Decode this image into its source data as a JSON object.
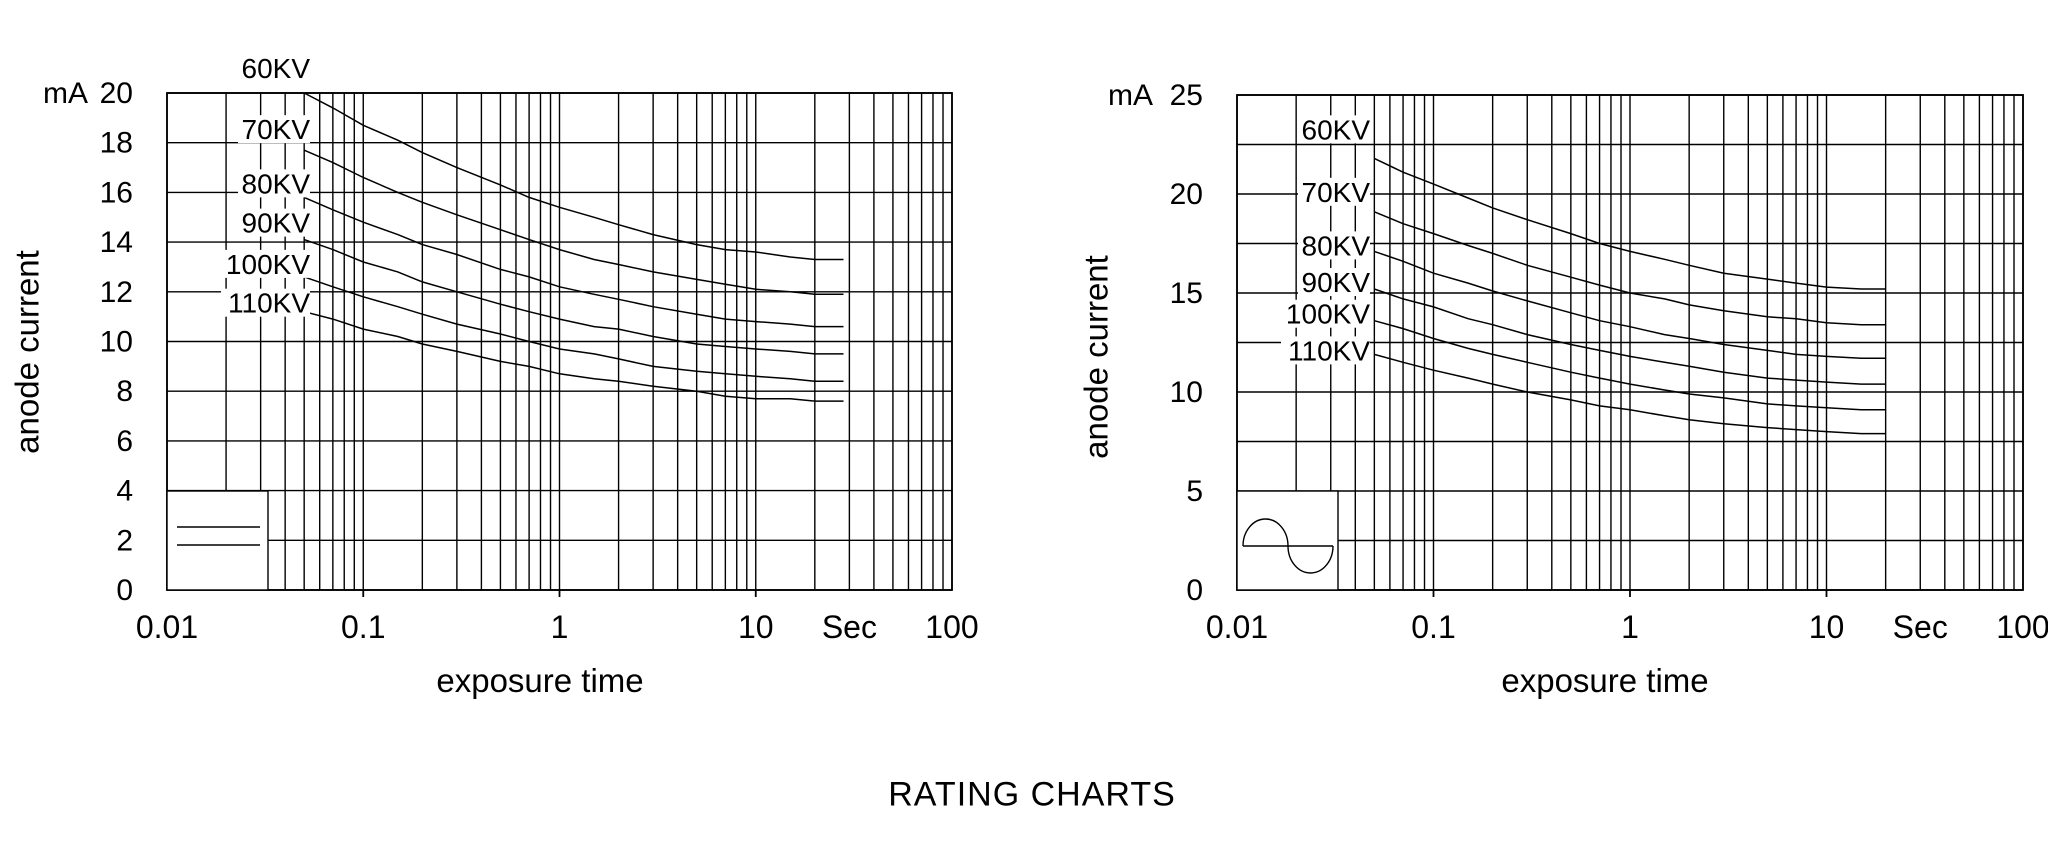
{
  "page": {
    "caption": "RATING CHARTS",
    "background_color": "#ffffff",
    "line_color": "#000000",
    "text_color": "#000000"
  },
  "chart_data": [
    {
      "id": "rating-chart-dc",
      "type": "line",
      "title": "",
      "xlabel": "exposure time",
      "ylabel": "anode current",
      "y_unit_label": "mA",
      "x_unit_label": {
        "text": "Sec",
        "t": 30
      },
      "x_scale": "log",
      "xlim": [
        0.01,
        100
      ],
      "ylim": [
        0,
        20
      ],
      "grid": true,
      "y_grid_step": 2,
      "x_tick_labels": [
        {
          "t": 0.01,
          "label": "0.01"
        },
        {
          "t": 0.1,
          "label": "0.1"
        },
        {
          "t": 1,
          "label": "1"
        },
        {
          "t": 10,
          "label": "10"
        },
        {
          "t": 100,
          "label": "100"
        }
      ],
      "y_tick_labels": [
        {
          "v": 0,
          "label": "0"
        },
        {
          "v": 2,
          "label": "2"
        },
        {
          "v": 4,
          "label": "4"
        },
        {
          "v": 6,
          "label": "6"
        },
        {
          "v": 8,
          "label": "8"
        },
        {
          "v": 10,
          "label": "10"
        },
        {
          "v": 12,
          "label": "12"
        },
        {
          "v": 14,
          "label": "14"
        },
        {
          "v": 16,
          "label": "16"
        },
        {
          "v": 18,
          "label": "18"
        },
        {
          "v": 20,
          "label": "20"
        }
      ],
      "waveform_symbol": {
        "name": "constant-potential-dc-icon",
        "description": "two parallel horizontal lines in white box at lower left"
      },
      "legend_position": "labels-inline-left-of-curves",
      "x": [
        0.05,
        0.07,
        0.1,
        0.15,
        0.2,
        0.3,
        0.5,
        0.7,
        1,
        1.5,
        2,
        3,
        5,
        7,
        10,
        15,
        20,
        28
      ],
      "series": [
        {
          "name": "60KV",
          "values": [
            20.0,
            19.4,
            18.7,
            18.1,
            17.6,
            17.0,
            16.3,
            15.8,
            15.4,
            15.0,
            14.7,
            14.3,
            13.9,
            13.7,
            13.6,
            13.4,
            13.3,
            13.3
          ]
        },
        {
          "name": "70KV",
          "values": [
            17.7,
            17.2,
            16.6,
            16.0,
            15.6,
            15.1,
            14.5,
            14.1,
            13.7,
            13.3,
            13.1,
            12.8,
            12.5,
            12.3,
            12.1,
            12.0,
            11.9,
            11.9
          ]
        },
        {
          "name": "80KV",
          "values": [
            15.8,
            15.3,
            14.8,
            14.3,
            13.9,
            13.5,
            12.9,
            12.6,
            12.2,
            11.9,
            11.7,
            11.4,
            11.1,
            10.9,
            10.8,
            10.7,
            10.6,
            10.6
          ]
        },
        {
          "name": "90KV",
          "values": [
            14.1,
            13.7,
            13.2,
            12.8,
            12.4,
            12.0,
            11.5,
            11.2,
            10.9,
            10.6,
            10.5,
            10.2,
            9.9,
            9.8,
            9.7,
            9.6,
            9.5,
            9.5
          ]
        },
        {
          "name": "100KV",
          "values": [
            12.6,
            12.2,
            11.8,
            11.4,
            11.1,
            10.7,
            10.3,
            10.0,
            9.7,
            9.5,
            9.3,
            9.0,
            8.8,
            8.7,
            8.6,
            8.5,
            8.4,
            8.4
          ]
        },
        {
          "name": "110KV",
          "values": [
            11.2,
            10.9,
            10.5,
            10.2,
            9.9,
            9.6,
            9.2,
            9.0,
            8.7,
            8.5,
            8.4,
            8.2,
            8.0,
            7.8,
            7.7,
            7.7,
            7.6,
            7.6
          ]
        }
      ]
    },
    {
      "id": "rating-chart-ac",
      "type": "line",
      "title": "",
      "xlabel": "exposure time",
      "ylabel": "anode current",
      "y_unit_label": "mA",
      "x_unit_label": {
        "text": "Sec",
        "t": 30
      },
      "x_scale": "log",
      "xlim": [
        0.01,
        100
      ],
      "ylim": [
        0,
        25
      ],
      "grid": true,
      "y_grid_step": 2.5,
      "x_tick_labels": [
        {
          "t": 0.01,
          "label": "0.01"
        },
        {
          "t": 0.1,
          "label": "0.1"
        },
        {
          "t": 1,
          "label": "1"
        },
        {
          "t": 10,
          "label": "10"
        },
        {
          "t": 100,
          "label": "100"
        }
      ],
      "y_tick_labels": [
        {
          "v": 0,
          "label": "0"
        },
        {
          "v": 5,
          "label": "5"
        },
        {
          "v": 10,
          "label": "10"
        },
        {
          "v": 15,
          "label": "15"
        },
        {
          "v": 20,
          "label": "20"
        },
        {
          "v": 25,
          "label": "25"
        }
      ],
      "waveform_symbol": {
        "name": "single-phase-ac-sine-icon",
        "description": "one sine wave cycle in white box at lower left"
      },
      "legend_position": "labels-inline-left-of-curves",
      "x": [
        0.05,
        0.07,
        0.1,
        0.15,
        0.2,
        0.3,
        0.5,
        0.7,
        1,
        1.5,
        2,
        3,
        5,
        7,
        10,
        15,
        20
      ],
      "series": [
        {
          "name": "60KV",
          "values": [
            21.8,
            21.1,
            20.5,
            19.8,
            19.3,
            18.7,
            18.0,
            17.5,
            17.1,
            16.7,
            16.4,
            16.0,
            15.7,
            15.5,
            15.3,
            15.2,
            15.2
          ]
        },
        {
          "name": "70KV",
          "values": [
            19.1,
            18.5,
            18.0,
            17.4,
            17.0,
            16.4,
            15.8,
            15.4,
            15.0,
            14.7,
            14.4,
            14.1,
            13.8,
            13.7,
            13.5,
            13.4,
            13.4
          ]
        },
        {
          "name": "80KV",
          "values": [
            17.1,
            16.6,
            16.0,
            15.5,
            15.1,
            14.6,
            14.0,
            13.6,
            13.3,
            12.9,
            12.7,
            12.4,
            12.1,
            11.9,
            11.8,
            11.7,
            11.7
          ]
        },
        {
          "name": "90KV",
          "values": [
            15.2,
            14.7,
            14.3,
            13.7,
            13.4,
            12.9,
            12.4,
            12.1,
            11.8,
            11.5,
            11.3,
            11.0,
            10.7,
            10.6,
            10.5,
            10.4,
            10.4
          ]
        },
        {
          "name": "100KV",
          "values": [
            13.6,
            13.2,
            12.7,
            12.2,
            11.9,
            11.5,
            11.0,
            10.7,
            10.4,
            10.1,
            9.9,
            9.7,
            9.4,
            9.3,
            9.2,
            9.1,
            9.1
          ]
        },
        {
          "name": "110KV",
          "values": [
            11.9,
            11.5,
            11.1,
            10.7,
            10.4,
            10.0,
            9.6,
            9.3,
            9.1,
            8.8,
            8.6,
            8.4,
            8.2,
            8.1,
            8.0,
            7.9,
            7.9
          ]
        }
      ]
    }
  ]
}
